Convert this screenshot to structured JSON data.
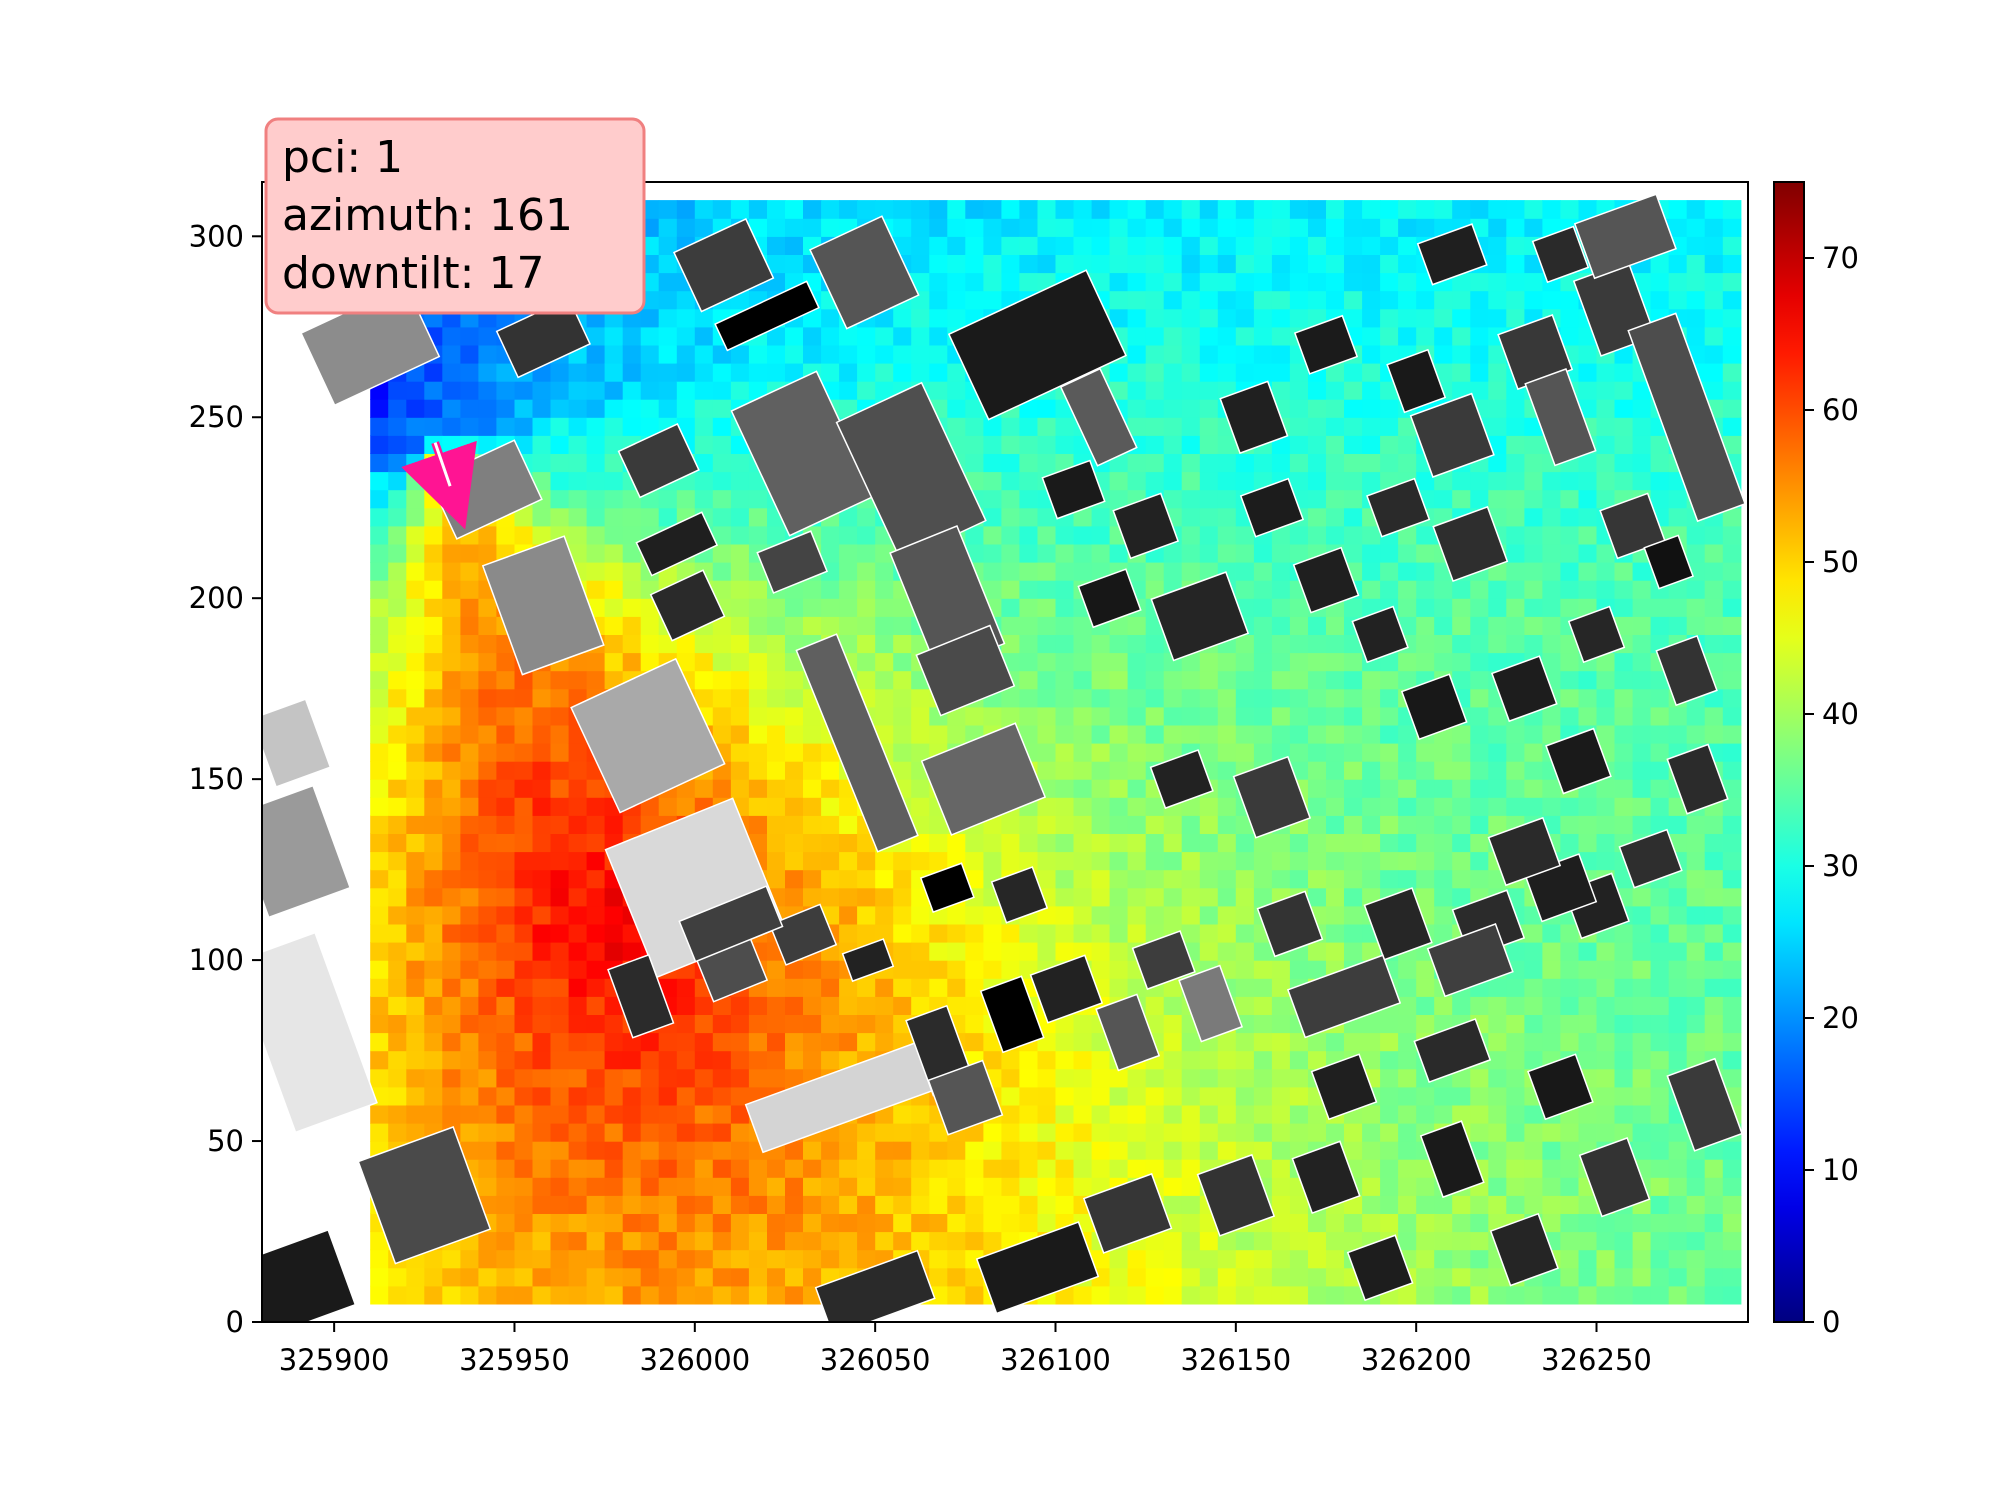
{
  "chart_data": {
    "type": "heatmap",
    "title": "",
    "xlabel": "",
    "ylabel": "",
    "xlim": [
      325880,
      326292
    ],
    "ylim": [
      0,
      315
    ],
    "x_ticks": [
      325900,
      325950,
      326000,
      326050,
      326100,
      326150,
      326200,
      326250
    ],
    "x_tick_labels": [
      "325900",
      "325950",
      "326000",
      "326050",
      "326100",
      "326150",
      "326200",
      "326250"
    ],
    "y_ticks": [
      0,
      50,
      100,
      150,
      200,
      250,
      300
    ],
    "y_tick_labels": [
      "0",
      "50",
      "100",
      "150",
      "200",
      "250",
      "300"
    ],
    "grid": false,
    "colormap": "jet",
    "colorbar": {
      "range": [
        0,
        75
      ],
      "ticks": [
        0,
        10,
        20,
        30,
        40,
        50,
        60,
        70
      ],
      "tick_labels": [
        "0",
        "10",
        "20",
        "30",
        "40",
        "50",
        "60",
        "70"
      ]
    },
    "grid_extent": {
      "x": [
        325910,
        326290
      ],
      "y": [
        5,
        310
      ]
    },
    "antenna": {
      "x": 325928,
      "y": 243,
      "azimuth_deg": 161
    },
    "field_model": {
      "peak_value": 66,
      "peak_location": {
        "x": 325975,
        "y": 110
      },
      "near_antenna_value": 55,
      "far_value": 33,
      "min_value": 13,
      "min_location": {
        "x": 325905,
        "y": 258
      },
      "noise_amplitude": 3
    },
    "annotation": {
      "lines": [
        "pci: 1",
        "azimuth: 161",
        "downtilt: 17"
      ],
      "box_face": "#ffcccc",
      "box_edge": "#f08080"
    },
    "buildings": [
      {
        "x": 325910,
        "y": 270,
        "w": 32,
        "h": 22,
        "rot": -25,
        "shade": "#8c8c8c"
      },
      {
        "x": 325942,
        "y": 230,
        "w": 26,
        "h": 18,
        "rot": -25,
        "shade": "#7f7f7f"
      },
      {
        "x": 325958,
        "y": 198,
        "w": 24,
        "h": 32,
        "rot": -20,
        "shade": "#8a8a8a"
      },
      {
        "x": 325987,
        "y": 162,
        "w": 32,
        "h": 32,
        "rot": -25,
        "shade": "#a9a9a9"
      },
      {
        "x": 326000,
        "y": 120,
        "w": 38,
        "h": 38,
        "rot": -22,
        "shade": "#d9d9d9"
      },
      {
        "x": 325985,
        "y": 90,
        "w": 12,
        "h": 20,
        "rot": -20,
        "shade": "#2b2b2b"
      },
      {
        "x": 326010,
        "y": 98,
        "w": 16,
        "h": 14,
        "rot": -22,
        "shade": "#4d4d4d"
      },
      {
        "x": 326030,
        "y": 107,
        "w": 15,
        "h": 12,
        "rot": -22,
        "shade": "#3d3d3d"
      },
      {
        "x": 326048,
        "y": 100,
        "w": 12,
        "h": 8,
        "rot": -20,
        "shade": "#222222"
      },
      {
        "x": 326030,
        "y": 240,
        "w": 26,
        "h": 38,
        "rot": -25,
        "shade": "#606060"
      },
      {
        "x": 326060,
        "y": 235,
        "w": 26,
        "h": 42,
        "rot": -25,
        "shade": "#4f4f4f"
      },
      {
        "x": 326045,
        "y": 160,
        "w": 12,
        "h": 60,
        "rot": -22,
        "shade": "#5f5f5f"
      },
      {
        "x": 326070,
        "y": 200,
        "w": 20,
        "h": 35,
        "rot": -22,
        "shade": "#555555"
      },
      {
        "x": 326080,
        "y": 150,
        "w": 28,
        "h": 22,
        "rot": -22,
        "shade": "#666666"
      },
      {
        "x": 326075,
        "y": 180,
        "w": 22,
        "h": 18,
        "rot": -22,
        "shade": "#4a4a4a"
      },
      {
        "x": 326095,
        "y": 270,
        "w": 42,
        "h": 26,
        "rot": -25,
        "shade": "#1a1a1a"
      },
      {
        "x": 326112,
        "y": 250,
        "w": 12,
        "h": 24,
        "rot": -25,
        "shade": "#5a5a5a"
      },
      {
        "x": 326047,
        "y": 290,
        "w": 22,
        "h": 24,
        "rot": -25,
        "shade": "#555555"
      },
      {
        "x": 326008,
        "y": 292,
        "w": 22,
        "h": 18,
        "rot": -25,
        "shade": "#3c3c3c"
      },
      {
        "x": 326020,
        "y": 278,
        "w": 28,
        "h": 8,
        "rot": -25,
        "shade": "#000000"
      },
      {
        "x": 325958,
        "y": 272,
        "w": 22,
        "h": 14,
        "rot": -25,
        "shade": "#333333"
      },
      {
        "x": 325990,
        "y": 238,
        "w": 18,
        "h": 14,
        "rot": -25,
        "shade": "#3a3a3a"
      },
      {
        "x": 325995,
        "y": 215,
        "w": 20,
        "h": 10,
        "rot": -25,
        "shade": "#1f1f1f"
      },
      {
        "x": 325998,
        "y": 198,
        "w": 16,
        "h": 14,
        "rot": -25,
        "shade": "#2a2a2a"
      },
      {
        "x": 326027,
        "y": 210,
        "w": 16,
        "h": 12,
        "rot": -22,
        "shade": "#444444"
      },
      {
        "x": 326010,
        "y": 110,
        "w": 26,
        "h": 12,
        "rot": -22,
        "shade": "#3f3f3f"
      },
      {
        "x": 326040,
        "y": 62,
        "w": 50,
        "h": 14,
        "rot": -20,
        "shade": "#d4d4d4"
      },
      {
        "x": 326068,
        "y": 75,
        "w": 12,
        "h": 22,
        "rot": -20,
        "shade": "#2b2b2b"
      },
      {
        "x": 326075,
        "y": 62,
        "w": 16,
        "h": 16,
        "rot": -20,
        "shade": "#555555"
      },
      {
        "x": 326088,
        "y": 85,
        "w": 12,
        "h": 18,
        "rot": -20,
        "shade": "#000000"
      },
      {
        "x": 326103,
        "y": 92,
        "w": 16,
        "h": 14,
        "rot": -20,
        "shade": "#222222"
      },
      {
        "x": 326120,
        "y": 80,
        "w": 12,
        "h": 18,
        "rot": -20,
        "shade": "#555555"
      },
      {
        "x": 326130,
        "y": 100,
        "w": 14,
        "h": 12,
        "rot": -20,
        "shade": "#3d3d3d"
      },
      {
        "x": 326143,
        "y": 88,
        "w": 12,
        "h": 18,
        "rot": -20,
        "shade": "#7a7a7a"
      },
      {
        "x": 326070,
        "y": 120,
        "w": 12,
        "h": 10,
        "rot": -20,
        "shade": "#000000"
      },
      {
        "x": 326090,
        "y": 118,
        "w": 12,
        "h": 12,
        "rot": -20,
        "shade": "#262626"
      },
      {
        "x": 326135,
        "y": 150,
        "w": 14,
        "h": 12,
        "rot": -20,
        "shade": "#222222"
      },
      {
        "x": 326160,
        "y": 145,
        "w": 16,
        "h": 18,
        "rot": -20,
        "shade": "#3a3a3a"
      },
      {
        "x": 326165,
        "y": 110,
        "w": 14,
        "h": 14,
        "rot": -20,
        "shade": "#333333"
      },
      {
        "x": 326195,
        "y": 110,
        "w": 14,
        "h": 16,
        "rot": -20,
        "shade": "#262626"
      },
      {
        "x": 326220,
        "y": 110,
        "w": 16,
        "h": 14,
        "rot": -20,
        "shade": "#2b2b2b"
      },
      {
        "x": 326250,
        "y": 115,
        "w": 14,
        "h": 14,
        "rot": -20,
        "shade": "#222222"
      },
      {
        "x": 326180,
        "y": 90,
        "w": 28,
        "h": 14,
        "rot": -20,
        "shade": "#3d3d3d"
      },
      {
        "x": 326215,
        "y": 100,
        "w": 20,
        "h": 14,
        "rot": -20,
        "shade": "#3f3f3f"
      },
      {
        "x": 326240,
        "y": 120,
        "w": 16,
        "h": 14,
        "rot": -20,
        "shade": "#1e1e1e"
      },
      {
        "x": 326265,
        "y": 128,
        "w": 14,
        "h": 12,
        "rot": -20,
        "shade": "#2e2e2e"
      },
      {
        "x": 326155,
        "y": 250,
        "w": 14,
        "h": 16,
        "rot": -20,
        "shade": "#202020"
      },
      {
        "x": 326175,
        "y": 270,
        "w": 14,
        "h": 12,
        "rot": -20,
        "shade": "#1b1b1b"
      },
      {
        "x": 326200,
        "y": 260,
        "w": 12,
        "h": 14,
        "rot": -20,
        "shade": "#191919"
      },
      {
        "x": 326210,
        "y": 245,
        "w": 18,
        "h": 18,
        "rot": -20,
        "shade": "#3a3a3a"
      },
      {
        "x": 326233,
        "y": 268,
        "w": 16,
        "h": 16,
        "rot": -20,
        "shade": "#383838"
      },
      {
        "x": 326160,
        "y": 225,
        "w": 14,
        "h": 12,
        "rot": -20,
        "shade": "#1c1c1c"
      },
      {
        "x": 326175,
        "y": 205,
        "w": 14,
        "h": 14,
        "rot": -20,
        "shade": "#1f1f1f"
      },
      {
        "x": 326195,
        "y": 225,
        "w": 14,
        "h": 12,
        "rot": -20,
        "shade": "#2a2a2a"
      },
      {
        "x": 326215,
        "y": 215,
        "w": 16,
        "h": 16,
        "rot": -20,
        "shade": "#2e2e2e"
      },
      {
        "x": 326190,
        "y": 190,
        "w": 12,
        "h": 12,
        "rot": -20,
        "shade": "#222222"
      },
      {
        "x": 326205,
        "y": 170,
        "w": 14,
        "h": 14,
        "rot": -20,
        "shade": "#181818"
      },
      {
        "x": 326230,
        "y": 175,
        "w": 14,
        "h": 14,
        "rot": -20,
        "shade": "#1d1d1d"
      },
      {
        "x": 326250,
        "y": 190,
        "w": 12,
        "h": 12,
        "rot": -20,
        "shade": "#262626"
      },
      {
        "x": 326105,
        "y": 230,
        "w": 14,
        "h": 12,
        "rot": -20,
        "shade": "#1a1a1a"
      },
      {
        "x": 326125,
        "y": 220,
        "w": 14,
        "h": 14,
        "rot": -20,
        "shade": "#222222"
      },
      {
        "x": 326115,
        "y": 200,
        "w": 14,
        "h": 12,
        "rot": -20,
        "shade": "#171717"
      },
      {
        "x": 326140,
        "y": 195,
        "w": 22,
        "h": 18,
        "rot": -20,
        "shade": "#252525"
      },
      {
        "x": 326210,
        "y": 295,
        "w": 16,
        "h": 12,
        "rot": -20,
        "shade": "#1f1f1f"
      },
      {
        "x": 326240,
        "y": 295,
        "w": 12,
        "h": 12,
        "rot": -20,
        "shade": "#2a2a2a"
      },
      {
        "x": 326255,
        "y": 280,
        "w": 16,
        "h": 22,
        "rot": -20,
        "shade": "#3a3a3a"
      },
      {
        "x": 326240,
        "y": 250,
        "w": 12,
        "h": 24,
        "rot": -20,
        "shade": "#555555"
      },
      {
        "x": 326275,
        "y": 250,
        "w": 14,
        "h": 56,
        "rot": -20,
        "shade": "#4d4d4d"
      },
      {
        "x": 326260,
        "y": 220,
        "w": 14,
        "h": 14,
        "rot": -20,
        "shade": "#363636"
      },
      {
        "x": 326258,
        "y": 300,
        "w": 24,
        "h": 16,
        "rot": -20,
        "shade": "#555555"
      },
      {
        "x": 326270,
        "y": 210,
        "w": 10,
        "h": 12,
        "rot": -20,
        "shade": "#111111"
      },
      {
        "x": 326275,
        "y": 180,
        "w": 12,
        "h": 16,
        "rot": -20,
        "shade": "#333333"
      },
      {
        "x": 326278,
        "y": 150,
        "w": 12,
        "h": 16,
        "rot": -20,
        "shade": "#2b2b2b"
      },
      {
        "x": 326245,
        "y": 155,
        "w": 14,
        "h": 14,
        "rot": -20,
        "shade": "#1a1a1a"
      },
      {
        "x": 326230,
        "y": 130,
        "w": 16,
        "h": 14,
        "rot": -20,
        "shade": "#2a2a2a"
      },
      {
        "x": 326150,
        "y": 35,
        "w": 16,
        "h": 18,
        "rot": -20,
        "shade": "#333333"
      },
      {
        "x": 326175,
        "y": 40,
        "w": 14,
        "h": 16,
        "rot": -20,
        "shade": "#222222"
      },
      {
        "x": 326190,
        "y": 15,
        "w": 14,
        "h": 14,
        "rot": -20,
        "shade": "#1d1d1d"
      },
      {
        "x": 326210,
        "y": 45,
        "w": 12,
        "h": 18,
        "rot": -20,
        "shade": "#1a1a1a"
      },
      {
        "x": 326230,
        "y": 20,
        "w": 14,
        "h": 16,
        "rot": -20,
        "shade": "#252525"
      },
      {
        "x": 326255,
        "y": 40,
        "w": 14,
        "h": 18,
        "rot": -20,
        "shade": "#333333"
      },
      {
        "x": 326280,
        "y": 60,
        "w": 14,
        "h": 22,
        "rot": -20,
        "shade": "#3a3a3a"
      },
      {
        "x": 326240,
        "y": 65,
        "w": 14,
        "h": 14,
        "rot": -20,
        "shade": "#181818"
      },
      {
        "x": 326210,
        "y": 75,
        "w": 18,
        "h": 12,
        "rot": -20,
        "shade": "#2a2a2a"
      },
      {
        "x": 326180,
        "y": 65,
        "w": 14,
        "h": 14,
        "rot": -20,
        "shade": "#1f1f1f"
      },
      {
        "x": 326120,
        "y": 30,
        "w": 20,
        "h": 16,
        "rot": -20,
        "shade": "#363636"
      },
      {
        "x": 326095,
        "y": 15,
        "w": 30,
        "h": 16,
        "rot": -20,
        "shade": "#1a1a1a"
      },
      {
        "x": 326050,
        "y": 8,
        "w": 30,
        "h": 14,
        "rot": -20,
        "shade": "#2a2a2a"
      },
      {
        "x": 325925,
        "y": 35,
        "w": 28,
        "h": 30,
        "rot": -20,
        "shade": "#4a4a4a"
      },
      {
        "x": 325888,
        "y": 10,
        "w": 30,
        "h": 22,
        "rot": -20,
        "shade": "#1a1a1a"
      },
      {
        "x": 325888,
        "y": 130,
        "w": 24,
        "h": 30,
        "rot": -20,
        "shade": "#9a9a9a"
      },
      {
        "x": 325892,
        "y": 80,
        "w": 24,
        "h": 50,
        "rot": -20,
        "shade": "#e6e6e6"
      },
      {
        "x": 325888,
        "y": 160,
        "w": 16,
        "h": 20,
        "rot": -20,
        "shade": "#c4c4c4"
      }
    ]
  }
}
